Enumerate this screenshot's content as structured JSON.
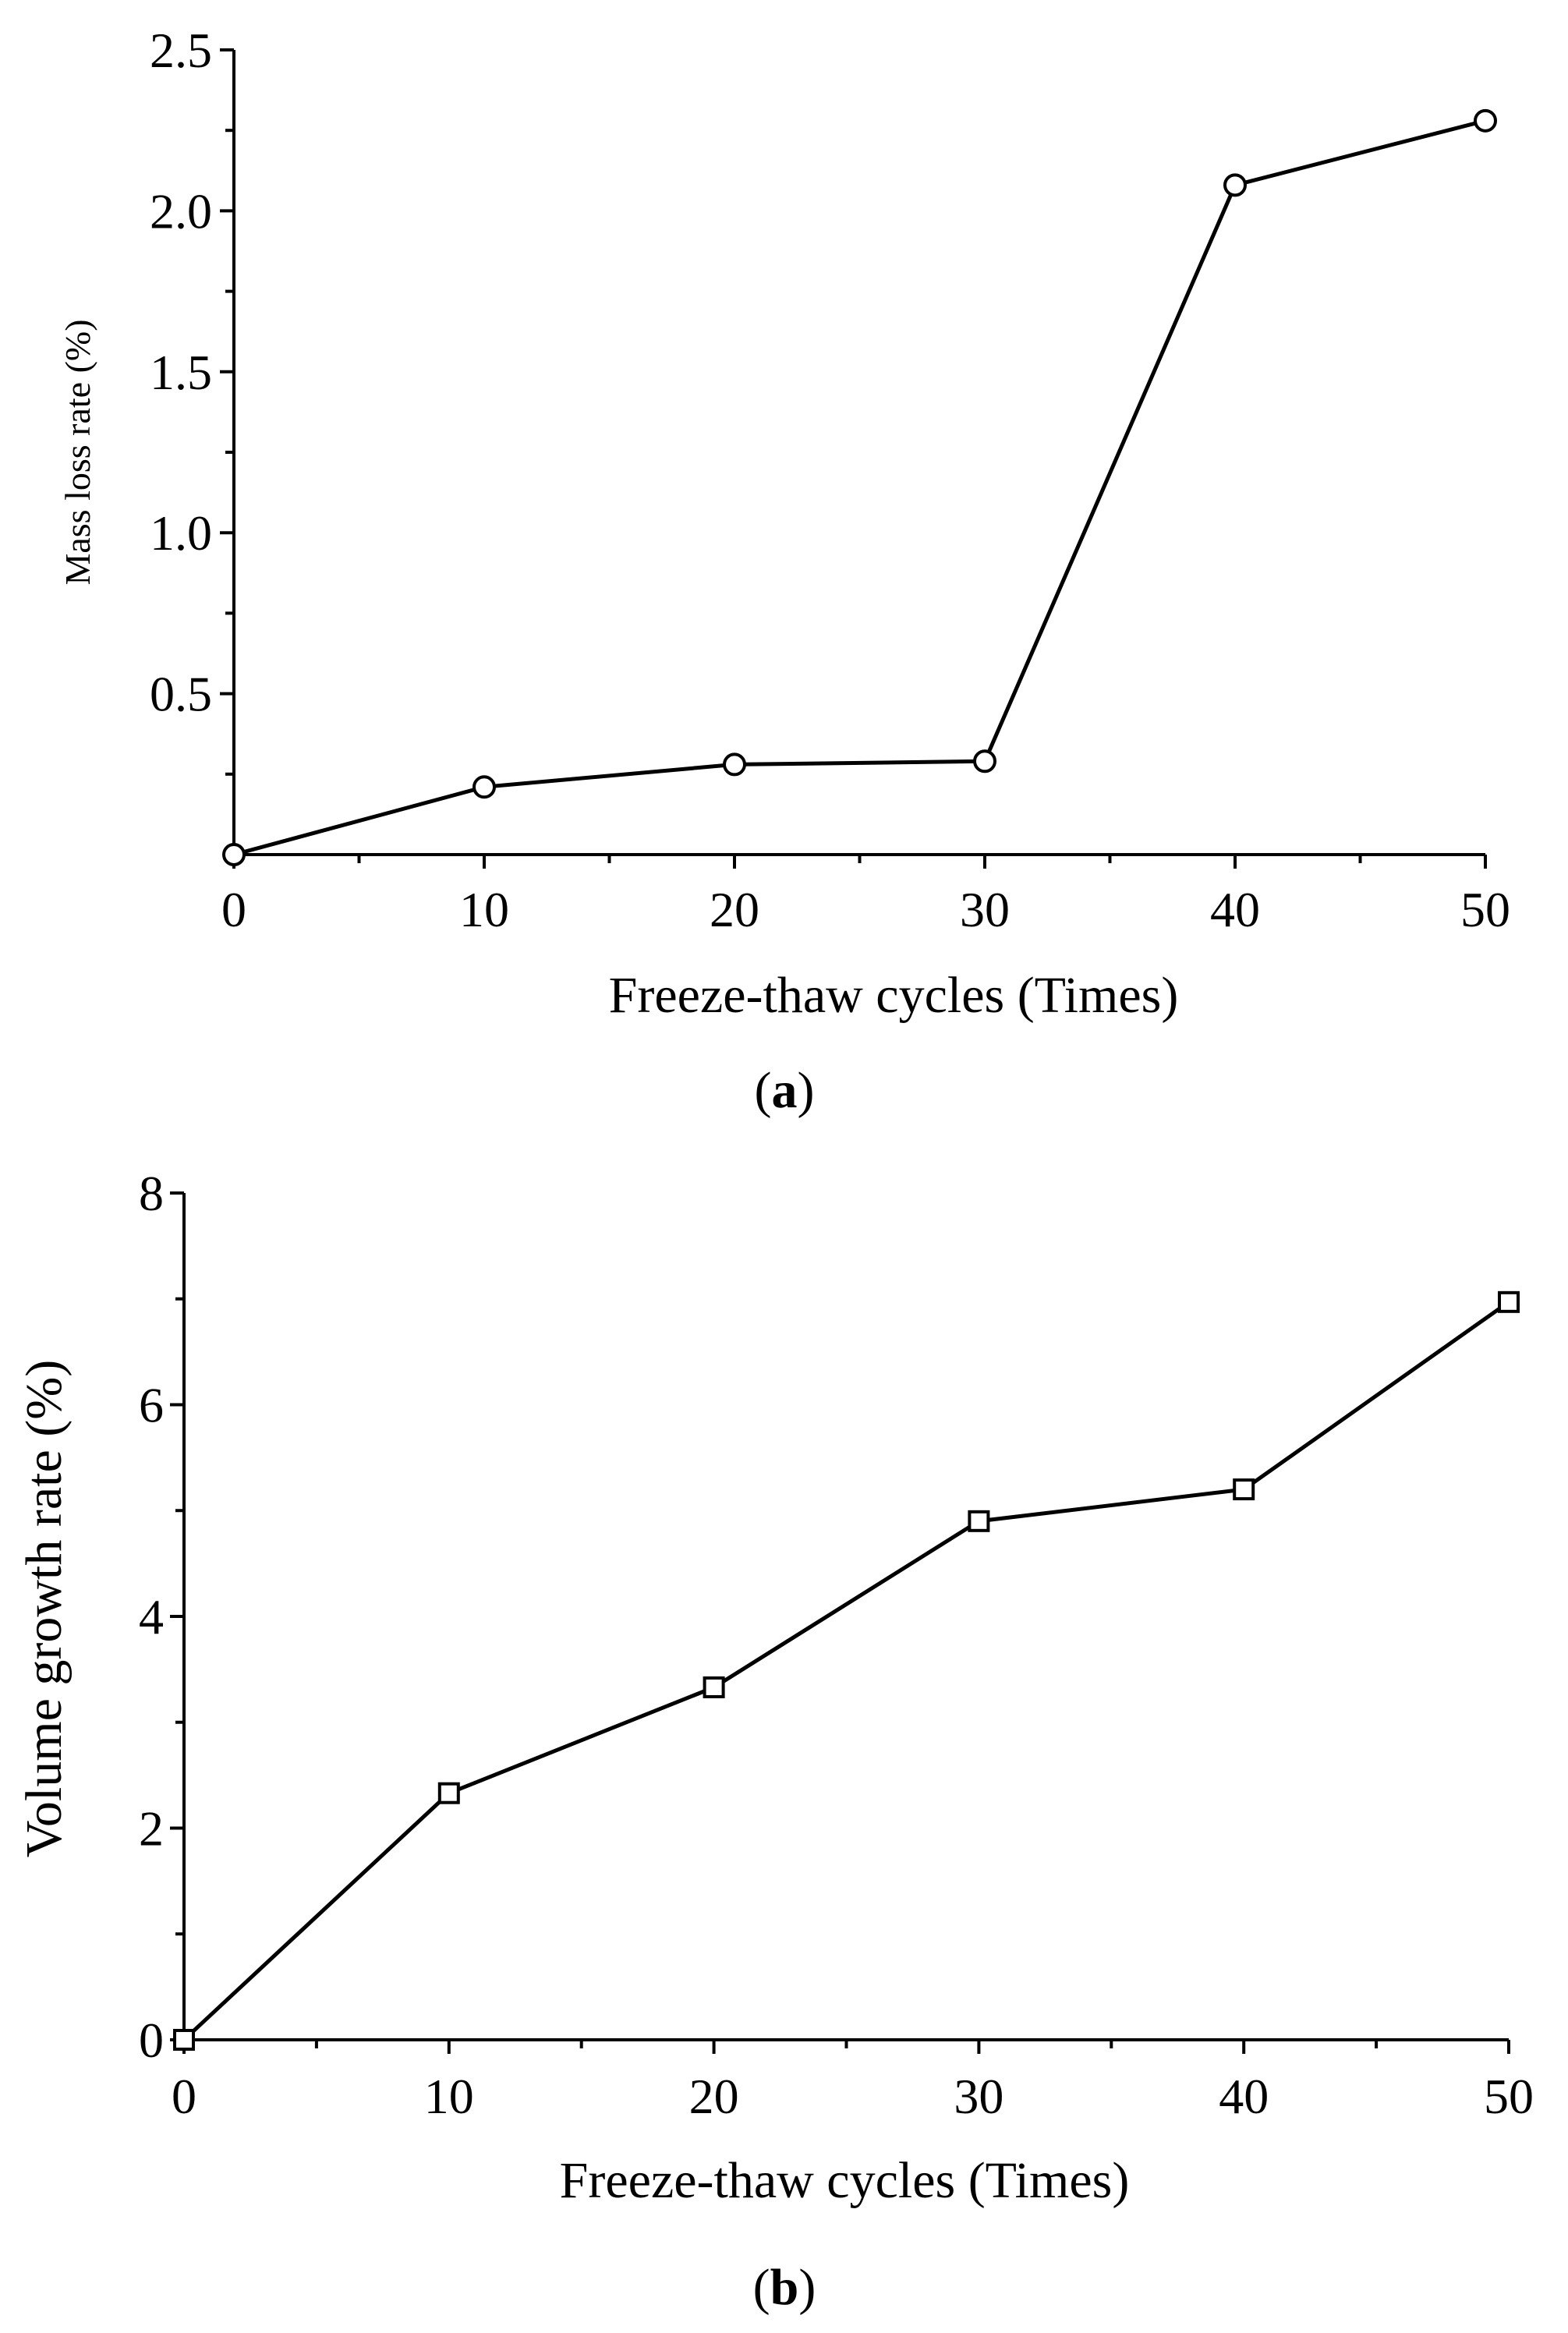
{
  "colors": {
    "line": "#000000",
    "marker_fill": "#ffffff",
    "background": "#ffffff"
  },
  "chart_data": [
    {
      "id": "a",
      "type": "line",
      "marker": "circle",
      "caption_label": "a",
      "xlabel": "Freeze-thaw cycles (Times)",
      "ylabel": "Mass loss rate (%)",
      "x": [
        0,
        10,
        20,
        30,
        40,
        50
      ],
      "series": [
        {
          "name": "Mass loss rate",
          "values": [
            0.0,
            0.21,
            0.28,
            0.29,
            2.08,
            2.28
          ]
        }
      ],
      "xlim": [
        0,
        50
      ],
      "ylim": [
        0,
        2.5
      ],
      "x_ticks": [
        0,
        10,
        20,
        30,
        40,
        50
      ],
      "x_tick_labels": [
        "0",
        "10",
        "20",
        "30",
        "40",
        "50"
      ],
      "x_minor_ticks": [
        5,
        15,
        25,
        35,
        45
      ],
      "y_ticks": [
        0.5,
        1.0,
        1.5,
        2.0,
        2.5
      ],
      "y_tick_labels": [
        "0.5",
        "1.0",
        "1.5",
        "2.0",
        "2.5"
      ],
      "y_minor_ticks": [
        0.25,
        0.75,
        1.25,
        1.75,
        2.25
      ],
      "grid": false,
      "legend": "none"
    },
    {
      "id": "b",
      "type": "line",
      "marker": "square",
      "caption_label": "b",
      "xlabel": "Freeze-thaw cycles (Times)",
      "ylabel": "Volume growth rate (%)",
      "x": [
        0,
        10,
        20,
        30,
        40,
        50
      ],
      "series": [
        {
          "name": "Volume growth rate",
          "values": [
            0.0,
            2.33,
            3.33,
            4.9,
            5.2,
            6.97
          ]
        }
      ],
      "xlim": [
        0,
        50
      ],
      "ylim": [
        0,
        8
      ],
      "x_ticks": [
        0,
        10,
        20,
        30,
        40,
        50
      ],
      "x_tick_labels": [
        "0",
        "10",
        "20",
        "30",
        "40",
        "50"
      ],
      "x_minor_ticks": [
        5,
        15,
        25,
        35,
        45
      ],
      "y_ticks": [
        0,
        2,
        4,
        6,
        8
      ],
      "y_tick_labels": [
        "0",
        "2",
        "4",
        "6",
        "8"
      ],
      "y_minor_ticks": [
        1,
        3,
        5,
        7
      ],
      "grid": false,
      "legend": "none"
    }
  ]
}
